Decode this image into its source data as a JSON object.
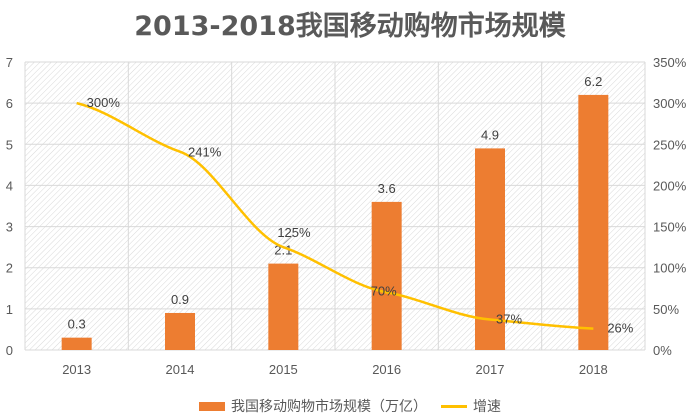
{
  "chart_data": {
    "type": "bar+line",
    "title": "2013-2018我国移动购物市场规模",
    "categories": [
      "2013",
      "2014",
      "2015",
      "2016",
      "2017",
      "2018"
    ],
    "series": [
      {
        "name": "我国移动购物市场规模（万亿）",
        "type": "bar",
        "axis": "left",
        "values": [
          0.3,
          0.9,
          2.1,
          3.6,
          4.9,
          6.2
        ],
        "labels": [
          "0.3",
          "0.9",
          "2.1",
          "3.6",
          "4.9",
          "6.2"
        ],
        "color": "#ED7D31"
      },
      {
        "name": "增速",
        "type": "line",
        "axis": "right",
        "values": [
          300,
          241,
          125,
          70,
          37,
          26
        ],
        "labels": [
          "300%",
          "241%",
          "125%",
          "70%",
          "37%",
          "26%"
        ],
        "color": "#FFC000"
      }
    ],
    "y_left": {
      "range": [
        0,
        7
      ],
      "ticks": [
        "0",
        "1",
        "2",
        "3",
        "4",
        "5",
        "6",
        "7"
      ]
    },
    "y_right": {
      "range": [
        0,
        350
      ],
      "ticks": [
        "0%",
        "50%",
        "100%",
        "150%",
        "200%",
        "250%",
        "300%",
        "350%"
      ]
    },
    "grid": true,
    "legend": "bottom"
  }
}
